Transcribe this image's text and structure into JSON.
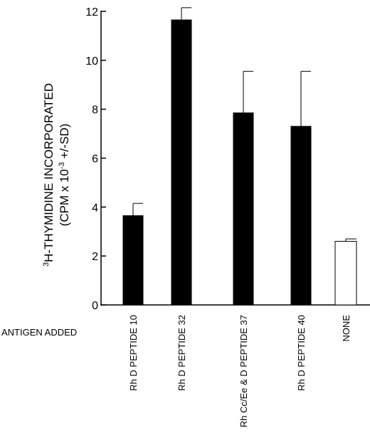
{
  "chart_data": {
    "type": "bar",
    "ylabel_line1_super": "3",
    "ylabel_line1_text": "H-THYMIDINE INCORPORATED",
    "ylabel_line2_pre": "(CPM x 10",
    "ylabel_line2_super": "-3",
    "ylabel_line2_post": " +/-SD)",
    "xlabel": "ANTIGEN ADDED",
    "ylim": [
      0,
      12
    ],
    "yticks": [
      0,
      2,
      4,
      6,
      8,
      10,
      12
    ],
    "categories": [
      "Rh D PEPTIDE 10",
      "Rh D PEPTIDE 32",
      "Rh Cc/Ee & D PEPTIDE 37",
      "Rh D PEPTIDE 40",
      "NONE"
    ],
    "values": [
      3.65,
      11.65,
      7.85,
      7.3,
      2.6
    ],
    "sd": [
      0.5,
      0.5,
      1.7,
      2.25,
      0.1
    ],
    "fills": [
      "#000000",
      "#000000",
      "#000000",
      "#000000",
      "#ffffff"
    ],
    "grid": false,
    "legend": "none"
  }
}
